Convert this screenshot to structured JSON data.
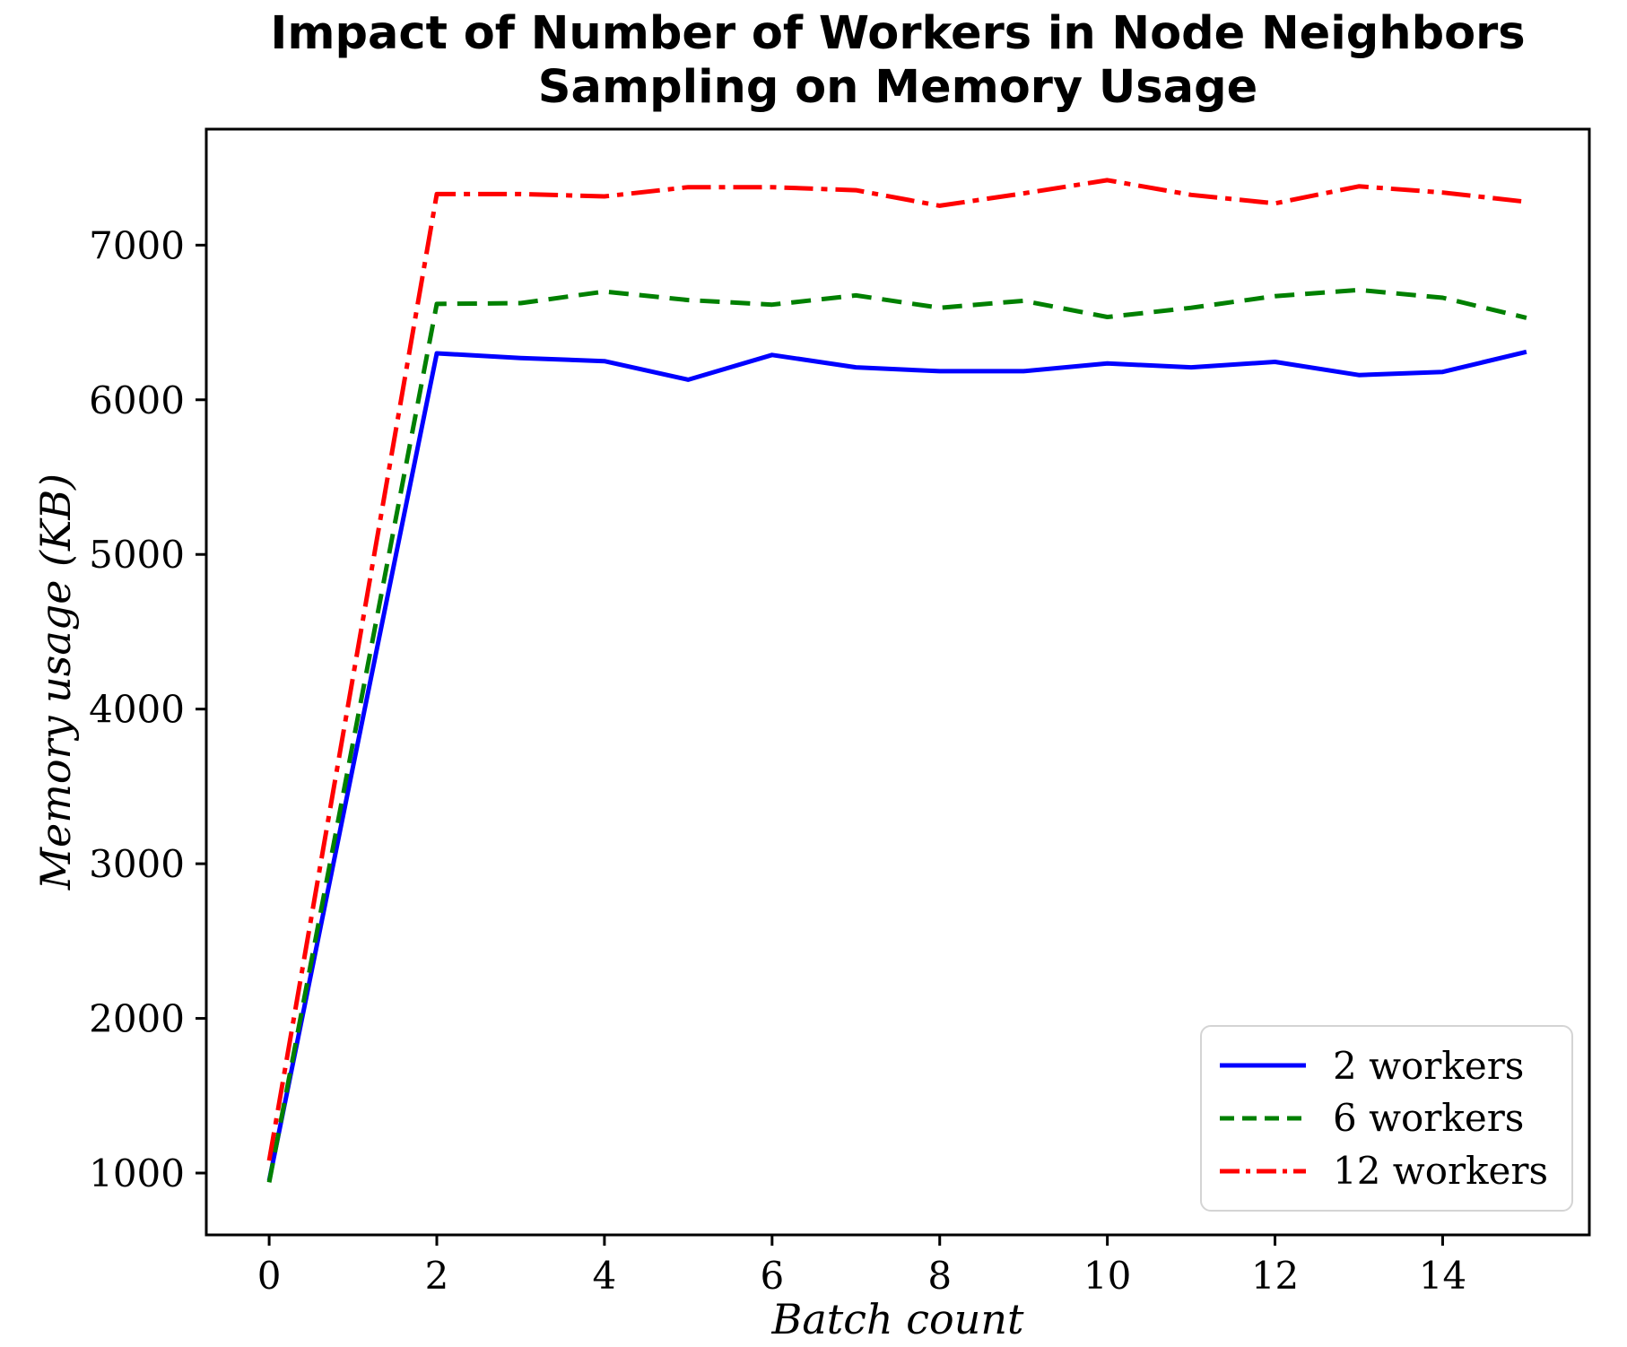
{
  "chart_data": {
    "type": "line",
    "title": "Impact of Number of Workers in Node Neighbors Sampling on Memory Usage",
    "title_lines": [
      "Impact of Number of Workers in Node Neighbors",
      "Sampling on Memory Usage"
    ],
    "xlabel": "Batch count",
    "ylabel": "Memory usage (KB)",
    "x": [
      0,
      1,
      2,
      3,
      4,
      5,
      6,
      7,
      8,
      9,
      10,
      11,
      12,
      13,
      14,
      15
    ],
    "series": [
      {
        "name": "2 workers",
        "color": "#0000ff",
        "linestyle": "solid",
        "values": [
          950,
          3625,
          6300,
          6270,
          6250,
          6130,
          6290,
          6210,
          6185,
          6185,
          6235,
          6210,
          6245,
          6160,
          6180,
          6310
        ]
      },
      {
        "name": "6 workers",
        "color": "#008000",
        "linestyle": "dashed",
        "values": [
          940,
          3780,
          6620,
          6625,
          6700,
          6645,
          6615,
          6675,
          6595,
          6640,
          6535,
          6595,
          6670,
          6710,
          6660,
          6530
        ]
      },
      {
        "name": "12 workers",
        "color": "#ff0000",
        "linestyle": "dashdot",
        "values": [
          1080,
          4205,
          7330,
          7330,
          7315,
          7375,
          7375,
          7355,
          7255,
          7335,
          7420,
          7325,
          7270,
          7380,
          7340,
          7280
        ]
      }
    ],
    "xticks": [
      0,
      2,
      4,
      6,
      8,
      10,
      12,
      14
    ],
    "yticks": [
      1000,
      2000,
      3000,
      4000,
      5000,
      6000,
      7000
    ],
    "xlim": [
      -0.75,
      15.75
    ],
    "ylim": [
      600,
      7750
    ],
    "grid": false,
    "legend_position": "lower right",
    "axis_color": "#000000",
    "background_color": "#ffffff"
  }
}
